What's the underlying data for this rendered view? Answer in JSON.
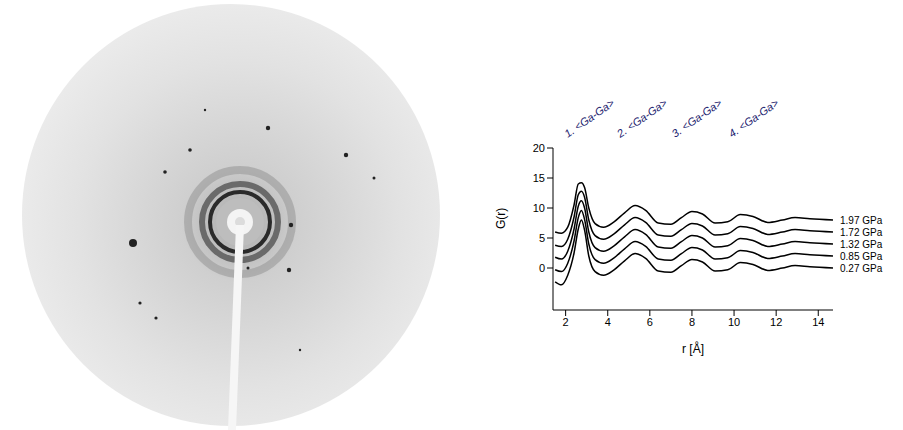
{
  "chart_data": {
    "type": "line",
    "x_label": "r [Å]",
    "y_label": "G(r)",
    "x": [
      1.5,
      1.8,
      2.1,
      2.4,
      2.6,
      2.75,
      2.9,
      3.1,
      3.4,
      3.8,
      4.3,
      4.8,
      5.3,
      5.8,
      6.4,
      7.0,
      7.5,
      8.0,
      8.5,
      9.1,
      9.7,
      10.3,
      10.9,
      11.6,
      12.3,
      12.9,
      13.6,
      14.7
    ],
    "series": [
      {
        "name": "0.27 GPa",
        "color": "#000000",
        "values": [
          -2.3,
          -2.8,
          -1.2,
          2.5,
          6.5,
          8.0,
          6.3,
          2.0,
          -0.6,
          -1.2,
          -0.3,
          1.2,
          2.4,
          1.6,
          -0.5,
          -0.7,
          0.4,
          1.4,
          1.0,
          -0.5,
          -0.3,
          0.9,
          0.6,
          -0.4,
          0.0,
          0.4,
          0.2,
          0.0
        ]
      },
      {
        "name": "0.85 GPa",
        "color": "#000000",
        "values": [
          -0.3,
          -0.6,
          0.8,
          4.5,
          8.4,
          9.6,
          8.1,
          4.0,
          1.4,
          0.8,
          1.7,
          3.2,
          4.4,
          3.6,
          1.5,
          1.3,
          2.4,
          3.4,
          3.0,
          1.5,
          1.7,
          2.9,
          2.6,
          1.6,
          2.0,
          2.4,
          2.2,
          2.0
        ]
      },
      {
        "name": "1.32 GPa",
        "color": "#000000",
        "values": [
          1.8,
          1.5,
          2.8,
          6.5,
          10.3,
          11.2,
          10.0,
          6.0,
          3.4,
          2.8,
          3.7,
          5.2,
          6.4,
          5.6,
          3.5,
          3.3,
          4.4,
          5.4,
          5.0,
          3.5,
          3.7,
          4.9,
          4.6,
          3.6,
          4.0,
          4.4,
          4.2,
          4.0
        ]
      },
      {
        "name": "1.72 GPa",
        "color": "#000000",
        "values": [
          3.8,
          3.6,
          4.8,
          8.5,
          12.2,
          12.8,
          11.8,
          8.0,
          5.4,
          4.8,
          5.7,
          7.2,
          8.4,
          7.6,
          5.5,
          5.3,
          6.4,
          7.4,
          7.0,
          5.5,
          5.7,
          6.9,
          6.6,
          5.6,
          6.0,
          6.4,
          6.2,
          6.0
        ]
      },
      {
        "name": "1.97 GPa",
        "color": "#000000",
        "values": [
          6.0,
          5.8,
          6.8,
          10.5,
          14.0,
          14.2,
          13.4,
          10.0,
          7.4,
          6.8,
          7.7,
          9.2,
          10.4,
          9.6,
          7.5,
          7.3,
          8.4,
          9.4,
          9.0,
          7.5,
          7.7,
          8.9,
          8.6,
          7.6,
          8.0,
          8.4,
          8.2,
          8.0
        ]
      }
    ],
    "xlim": [
      1.4,
      14.7
    ],
    "ylim": [
      -7,
      20
    ],
    "xticks": [
      2,
      4,
      6,
      8,
      10,
      12,
      14
    ],
    "yticks": [
      0,
      5,
      10,
      15,
      20
    ],
    "annotations": [
      {
        "text": "1. <Ga-Ga>",
        "x": 2.1
      },
      {
        "text": "2. <Ga-Ga>",
        "x": 4.6
      },
      {
        "text": "3. <Ga-Ga>",
        "x": 7.2
      },
      {
        "text": "4. <Ga-Ga>",
        "x": 9.9
      }
    ]
  }
}
